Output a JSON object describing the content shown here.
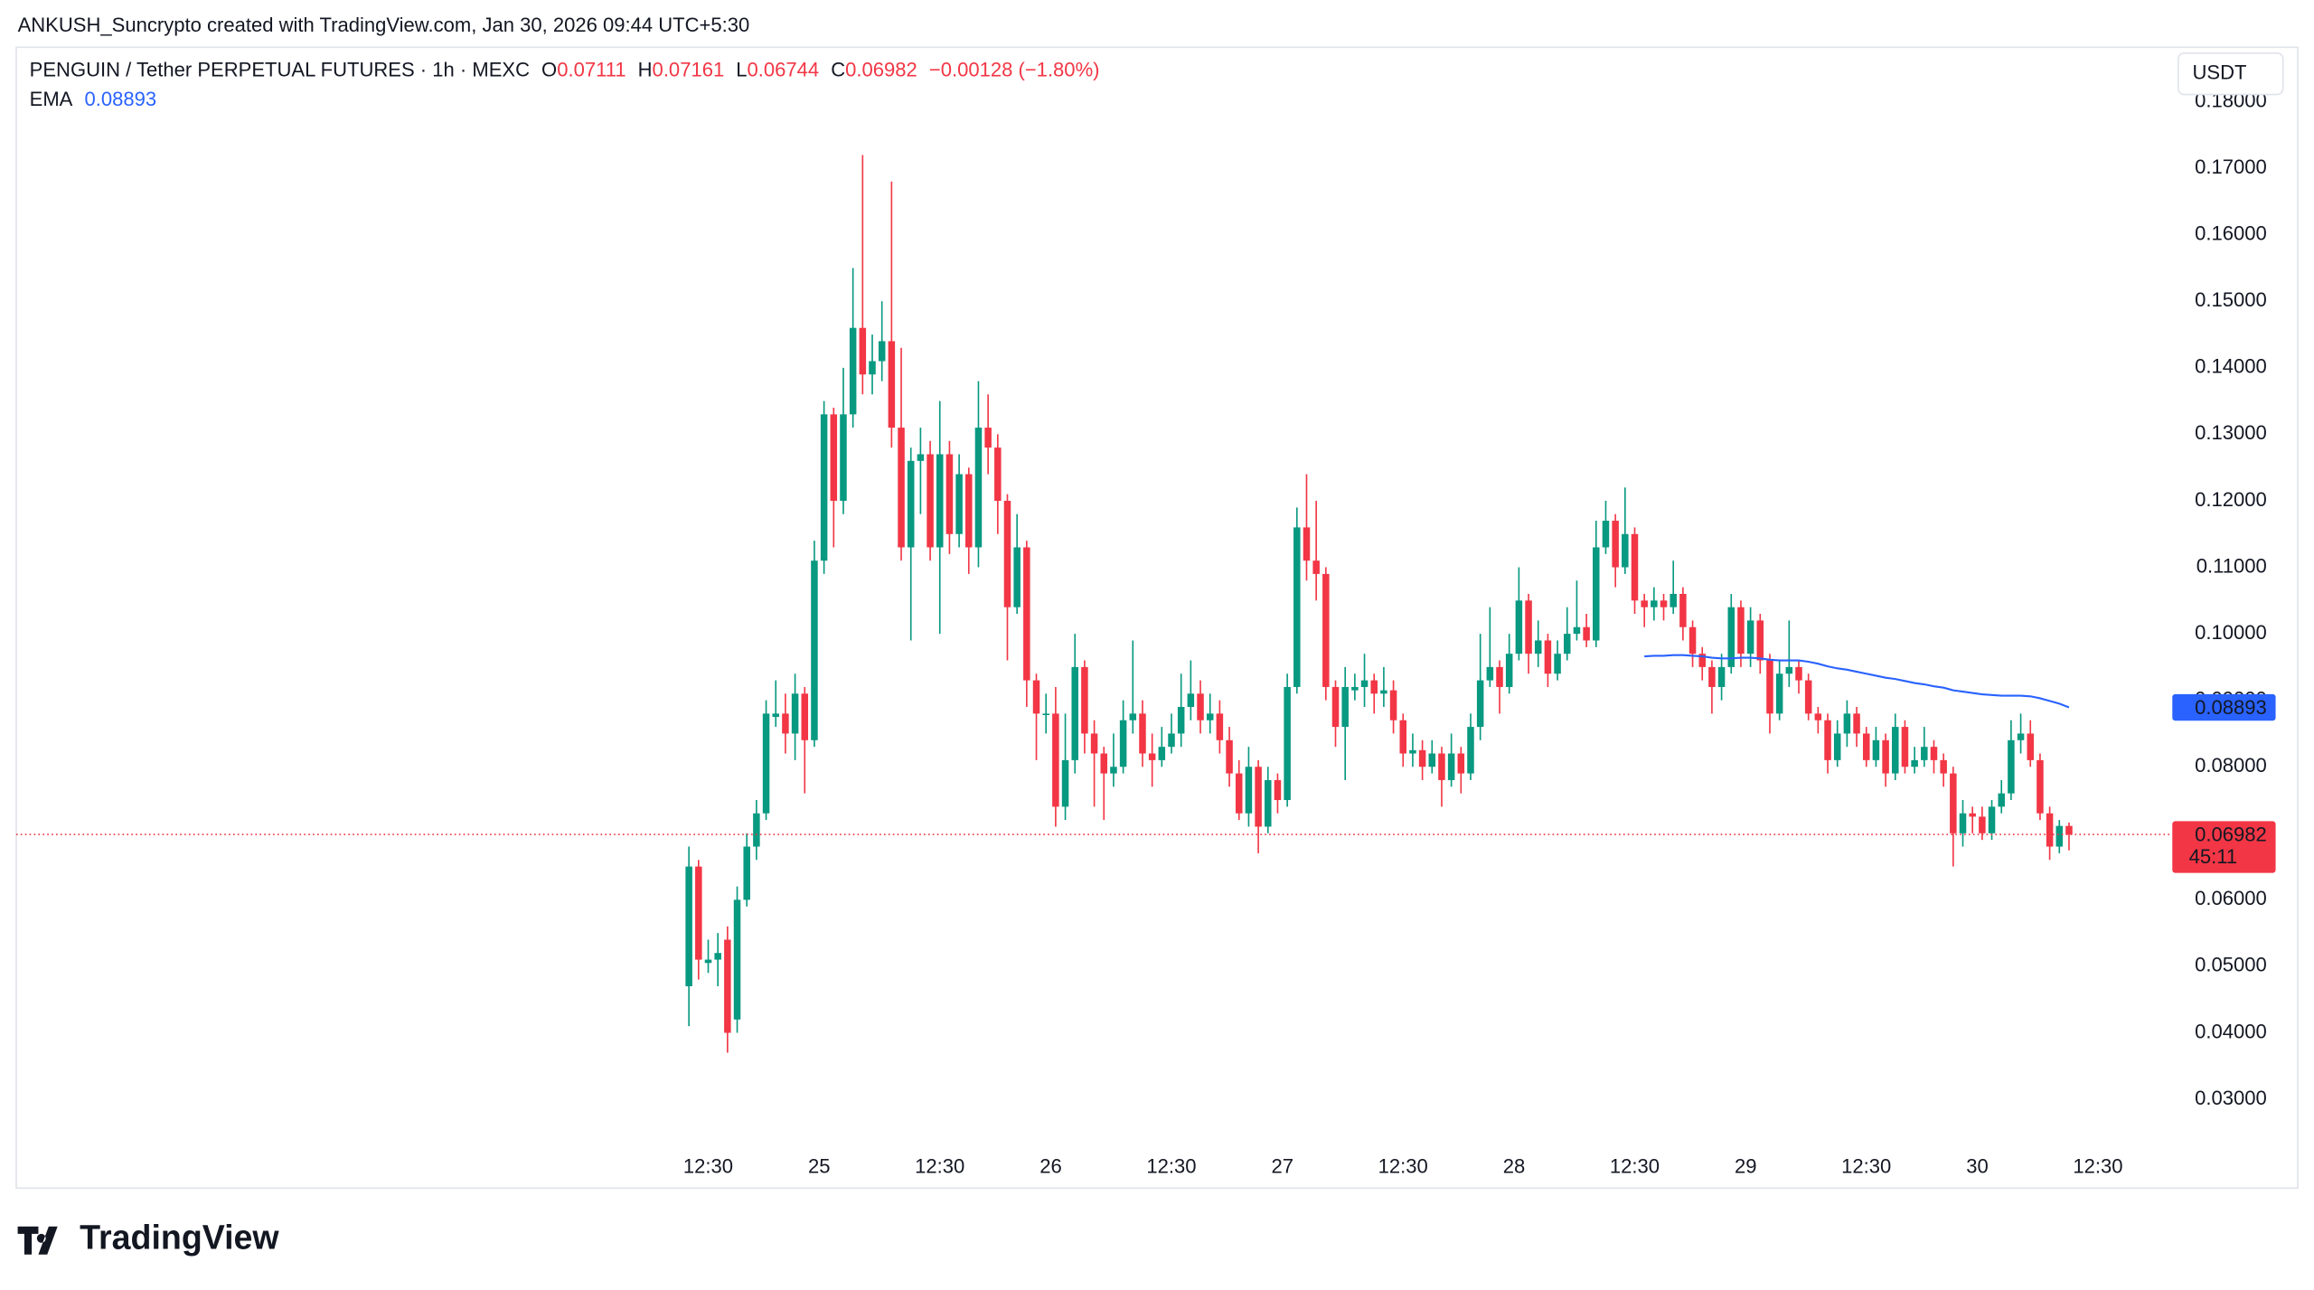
{
  "header": {
    "attribution": "ANKUSH_Suncrypto created with TradingView.com, Jan 30, 2026 09:44 UTC+5:30",
    "logo": "TradingView"
  },
  "chart_data": {
    "type": "candlestick",
    "title": "PENGUIN / Tether PERPETUAL FUTURES · 1h · MEXC",
    "open_label": "O",
    "high_label": "H",
    "low_label": "L",
    "close_label": "C",
    "change": "−0.00128 (−1.80%)",
    "currency": "USDT",
    "countdown": "45:11",
    "up_color": "#089981",
    "down_color": "#f23645",
    "open": [
      0.047,
      0.065,
      0.0505,
      0.051,
      0.054,
      0.042,
      0.06,
      0.068,
      0.073,
      0.0875,
      0.088,
      0.085,
      0.091,
      0.084,
      0.111,
      0.133,
      0.12,
      0.133,
      0.146,
      0.139,
      0.141,
      0.144,
      0.131,
      0.113,
      0.126,
      0.127,
      0.113,
      0.127,
      0.115,
      0.124,
      0.113,
      0.131,
      0.128,
      0.12,
      0.104,
      0.113,
      0.093,
      0.0878,
      0.088,
      0.074,
      0.081,
      0.095,
      0.085,
      0.082,
      0.079,
      0.08,
      0.087,
      0.088,
      0.082,
      0.081,
      0.083,
      0.085,
      0.089,
      0.091,
      0.087,
      0.088,
      0.084,
      0.079,
      0.073,
      0.08,
      0.071,
      0.078,
      0.075,
      0.092,
      0.116,
      0.111,
      0.109,
      0.092,
      0.086,
      0.0915,
      0.092,
      0.093,
      0.091,
      0.0915,
      0.087,
      0.082,
      0.0825,
      0.08,
      0.082,
      0.078,
      0.082,
      0.079,
      0.086,
      0.093,
      0.095,
      0.092,
      0.097,
      0.105,
      0.097,
      0.099,
      0.094,
      0.097,
      0.1,
      0.101,
      0.099,
      0.113,
      0.117,
      0.11,
      0.115,
      0.105,
      0.104,
      0.105,
      0.104,
      0.106,
      0.101,
      0.097,
      0.095,
      0.092,
      0.095,
      0.104,
      0.097,
      0.102,
      0.096,
      0.088,
      0.094,
      0.095,
      0.093,
      0.088,
      0.087,
      0.081,
      0.085,
      0.088,
      0.085,
      0.081,
      0.084,
      0.079,
      0.086,
      0.08,
      0.081,
      0.083,
      0.081,
      0.079,
      0.07,
      0.073,
      0.0725,
      0.07,
      0.074,
      0.076,
      0.084,
      0.085,
      0.081,
      0.073,
      0.068,
      0.07111
    ],
    "high": [
      0.068,
      0.066,
      0.054,
      0.055,
      0.056,
      0.062,
      0.07,
      0.075,
      0.09,
      0.093,
      0.091,
      0.094,
      0.092,
      0.114,
      0.135,
      0.134,
      0.14,
      0.155,
      0.172,
      0.145,
      0.15,
      0.168,
      0.143,
      0.128,
      0.131,
      0.129,
      0.135,
      0.129,
      0.127,
      0.125,
      0.138,
      0.136,
      0.13,
      0.121,
      0.118,
      0.114,
      0.094,
      0.091,
      0.092,
      0.088,
      0.1,
      0.096,
      0.087,
      0.083,
      0.085,
      0.09,
      0.099,
      0.09,
      0.085,
      0.086,
      0.088,
      0.094,
      0.096,
      0.093,
      0.091,
      0.09,
      0.086,
      0.081,
      0.083,
      0.081,
      0.08,
      0.079,
      0.094,
      0.119,
      0.124,
      0.12,
      0.11,
      0.093,
      0.095,
      0.094,
      0.097,
      0.094,
      0.095,
      0.093,
      0.088,
      0.085,
      0.084,
      0.084,
      0.083,
      0.085,
      0.083,
      0.088,
      0.1,
      0.104,
      0.096,
      0.1,
      0.11,
      0.106,
      0.102,
      0.1,
      0.099,
      0.104,
      0.108,
      0.103,
      0.117,
      0.12,
      0.118,
      0.122,
      0.116,
      0.106,
      0.107,
      0.106,
      0.111,
      0.107,
      0.102,
      0.098,
      0.096,
      0.097,
      0.106,
      0.105,
      0.104,
      0.103,
      0.097,
      0.096,
      0.102,
      0.096,
      0.094,
      0.089,
      0.088,
      0.087,
      0.09,
      0.089,
      0.086,
      0.086,
      0.085,
      0.088,
      0.087,
      0.083,
      0.086,
      0.084,
      0.082,
      0.08,
      0.075,
      0.074,
      0.074,
      0.075,
      0.078,
      0.087,
      0.088,
      0.087,
      0.082,
      0.074,
      0.072,
      0.07161
    ],
    "low": [
      0.041,
      0.048,
      0.049,
      0.047,
      0.037,
      0.04,
      0.059,
      0.066,
      0.072,
      0.086,
      0.082,
      0.081,
      0.076,
      0.083,
      0.109,
      0.113,
      0.118,
      0.131,
      0.136,
      0.136,
      0.138,
      0.128,
      0.111,
      0.099,
      0.118,
      0.111,
      0.1,
      0.112,
      0.113,
      0.109,
      0.11,
      0.124,
      0.115,
      0.096,
      0.103,
      0.089,
      0.081,
      0.085,
      0.071,
      0.072,
      0.079,
      0.082,
      0.074,
      0.072,
      0.077,
      0.079,
      0.085,
      0.08,
      0.077,
      0.08,
      0.082,
      0.083,
      0.087,
      0.085,
      0.085,
      0.082,
      0.077,
      0.072,
      0.071,
      0.067,
      0.07,
      0.073,
      0.074,
      0.091,
      0.108,
      0.105,
      0.09,
      0.083,
      0.078,
      0.09,
      0.089,
      0.088,
      0.089,
      0.085,
      0.08,
      0.08,
      0.078,
      0.079,
      0.074,
      0.077,
      0.076,
      0.078,
      0.084,
      0.092,
      0.088,
      0.091,
      0.096,
      0.094,
      0.095,
      0.092,
      0.093,
      0.096,
      0.099,
      0.098,
      0.098,
      0.112,
      0.107,
      0.109,
      0.103,
      0.101,
      0.102,
      0.102,
      0.103,
      0.099,
      0.095,
      0.093,
      0.088,
      0.09,
      0.094,
      0.095,
      0.095,
      0.094,
      0.085,
      0.087,
      0.092,
      0.091,
      0.087,
      0.085,
      0.079,
      0.08,
      0.083,
      0.083,
      0.08,
      0.08,
      0.077,
      0.078,
      0.079,
      0.079,
      0.08,
      0.079,
      0.077,
      0.065,
      0.068,
      0.07,
      0.069,
      0.069,
      0.073,
      0.075,
      0.082,
      0.08,
      0.072,
      0.066,
      0.067,
      0.06744
    ],
    "close": [
      0.065,
      0.051,
      0.051,
      0.052,
      0.04,
      0.06,
      0.068,
      0.073,
      0.088,
      0.088,
      0.085,
      0.091,
      0.084,
      0.111,
      0.133,
      0.12,
      0.133,
      0.146,
      0.139,
      0.141,
      0.144,
      0.131,
      0.113,
      0.126,
      0.127,
      0.113,
      0.127,
      0.115,
      0.124,
      0.113,
      0.131,
      0.128,
      0.12,
      0.104,
      0.113,
      0.093,
      0.088,
      0.088,
      0.074,
      0.081,
      0.095,
      0.085,
      0.082,
      0.079,
      0.08,
      0.087,
      0.088,
      0.082,
      0.081,
      0.083,
      0.085,
      0.089,
      0.091,
      0.087,
      0.088,
      0.084,
      0.079,
      0.073,
      0.08,
      0.071,
      0.078,
      0.075,
      0.092,
      0.116,
      0.111,
      0.109,
      0.092,
      0.086,
      0.092,
      0.092,
      0.093,
      0.091,
      0.0915,
      0.087,
      0.082,
      0.0825,
      0.08,
      0.082,
      0.078,
      0.082,
      0.079,
      0.086,
      0.093,
      0.095,
      0.092,
      0.097,
      0.105,
      0.097,
      0.099,
      0.094,
      0.097,
      0.1,
      0.101,
      0.099,
      0.113,
      0.117,
      0.11,
      0.115,
      0.105,
      0.104,
      0.105,
      0.104,
      0.106,
      0.101,
      0.097,
      0.095,
      0.092,
      0.095,
      0.104,
      0.097,
      0.102,
      0.096,
      0.088,
      0.094,
      0.095,
      0.093,
      0.088,
      0.087,
      0.081,
      0.085,
      0.088,
      0.085,
      0.081,
      0.084,
      0.079,
      0.086,
      0.08,
      0.081,
      0.083,
      0.081,
      0.079,
      0.07,
      0.073,
      0.0725,
      0.07,
      0.074,
      0.076,
      0.084,
      0.085,
      0.081,
      0.073,
      0.068,
      0.07111,
      0.06982
    ],
    "series": [
      {
        "name": "EMA",
        "color": "#2962ff",
        "values": [
          null,
          null,
          null,
          null,
          null,
          null,
          null,
          null,
          null,
          null,
          null,
          null,
          null,
          null,
          null,
          null,
          null,
          null,
          null,
          null,
          null,
          null,
          null,
          null,
          null,
          null,
          null,
          null,
          null,
          null,
          null,
          null,
          null,
          null,
          null,
          null,
          null,
          null,
          null,
          null,
          null,
          null,
          null,
          null,
          null,
          null,
          null,
          null,
          null,
          null,
          null,
          null,
          null,
          null,
          null,
          null,
          null,
          null,
          null,
          null,
          null,
          null,
          null,
          null,
          null,
          null,
          null,
          null,
          null,
          null,
          null,
          null,
          null,
          null,
          null,
          null,
          null,
          null,
          null,
          null,
          null,
          null,
          null,
          null,
          null,
          null,
          null,
          null,
          null,
          null,
          null,
          null,
          null,
          null,
          null,
          null,
          null,
          null,
          null,
          0.0966,
          0.0967,
          0.0967,
          0.0968,
          0.0968,
          0.0967,
          0.0966,
          0.0964,
          0.0963,
          0.0963,
          0.0964,
          0.0964,
          0.0963,
          0.0961,
          0.096,
          0.096,
          0.096,
          0.0958,
          0.0955,
          0.0951,
          0.0948,
          0.0946,
          0.0943,
          0.094,
          0.0937,
          0.0934,
          0.0932,
          0.0929,
          0.0926,
          0.0924,
          0.0921,
          0.0919,
          0.0915,
          0.0913,
          0.0911,
          0.0909,
          0.0908,
          0.0907,
          0.0907,
          0.0907,
          0.0906,
          0.0903,
          0.0899,
          0.0895,
          0.08893
        ]
      }
    ],
    "ylim": [
      0.0233,
      0.1882
    ],
    "yticks": [
      {
        "value": 0.03,
        "label": "0.03000"
      },
      {
        "value": 0.04,
        "label": "0.04000"
      },
      {
        "value": 0.05,
        "label": "0.05000"
      },
      {
        "value": 0.06,
        "label": "0.06000"
      },
      {
        "value": 0.07,
        "label": "0.07000"
      },
      {
        "value": 0.08,
        "label": "0.08000"
      },
      {
        "value": 0.09,
        "label": "0.09000"
      },
      {
        "value": 0.1,
        "label": "0.10000"
      },
      {
        "value": 0.11,
        "label": "0.11000"
      },
      {
        "value": 0.12,
        "label": "0.12000"
      },
      {
        "value": 0.13,
        "label": "0.13000"
      },
      {
        "value": 0.14,
        "label": "0.14000"
      },
      {
        "value": 0.15,
        "label": "0.15000"
      },
      {
        "value": 0.16,
        "label": "0.16000"
      },
      {
        "value": 0.17,
        "label": "0.17000"
      },
      {
        "value": 0.18,
        "label": "0.18000"
      }
    ],
    "xlim": [
      -69.7,
      153.4
    ],
    "xticks": [
      {
        "value": 2,
        "label": "12:30"
      },
      {
        "value": 13.5,
        "label": "25"
      },
      {
        "value": 26,
        "label": "12:30"
      },
      {
        "value": 37.5,
        "label": "26"
      },
      {
        "value": 50,
        "label": "12:30"
      },
      {
        "value": 61.5,
        "label": "27"
      },
      {
        "value": 74,
        "label": "12:30"
      },
      {
        "value": 85.5,
        "label": "28"
      },
      {
        "value": 98,
        "label": "12:30"
      },
      {
        "value": 109.5,
        "label": "29"
      },
      {
        "value": 122,
        "label": "12:30"
      },
      {
        "value": 133.5,
        "label": "30"
      },
      {
        "value": 146,
        "label": "12:30"
      }
    ]
  }
}
